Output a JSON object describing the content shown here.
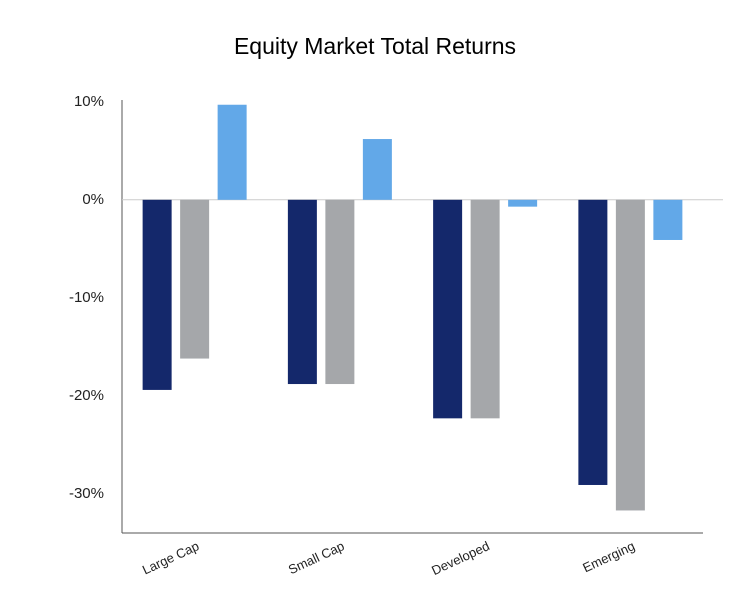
{
  "chart_data": {
    "type": "bar",
    "title": "Equity Market Total Returns",
    "categories": [
      "Large Cap",
      "Small Cap",
      "Developed",
      "Emerging"
    ],
    "series": [
      {
        "color": "#14286b",
        "values": [
          -19.4,
          -18.8,
          -22.3,
          -29.1
        ]
      },
      {
        "color": "#a5a7aa",
        "values": [
          -16.2,
          -18.8,
          -22.3,
          -31.7
        ]
      },
      {
        "color": "#62a8e8",
        "values": [
          9.7,
          6.2,
          -0.7,
          -4.1
        ]
      }
    ],
    "ylim": [
      -34,
      10
    ],
    "yticks": [
      {
        "value": 10,
        "label": "10%"
      },
      {
        "value": 0,
        "label": "0%"
      },
      {
        "value": -10,
        "label": "-10%"
      },
      {
        "value": -20,
        "label": "-20%"
      },
      {
        "value": -30,
        "label": "-30%"
      }
    ],
    "grid": false
  }
}
